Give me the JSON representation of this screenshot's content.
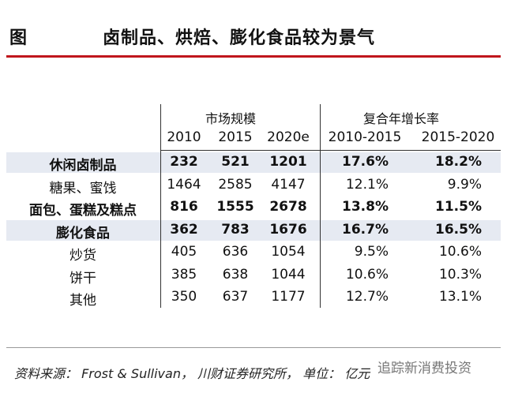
{
  "header": {
    "label": "图",
    "title": "卤制品、烘焙、膨化食品较为景气"
  },
  "table": {
    "group_headers": [
      "市场规模",
      "复合年增长率"
    ],
    "columns": [
      "2010",
      "2015",
      "2020e",
      "2010-2015",
      "2015-2020"
    ],
    "rows": [
      [
        "休闲卤制品",
        "232",
        "521",
        "1201",
        "17.6%",
        "18.2%"
      ],
      [
        "糖果、蜜饯",
        "1464",
        "2585",
        "4147",
        "12.1%",
        "9.9%"
      ],
      [
        "面包、蛋糕及糕点",
        "816",
        "1555",
        "2678",
        "13.8%",
        "11.5%"
      ],
      [
        "膨化食品",
        "362",
        "783",
        "1676",
        "16.7%",
        "16.5%"
      ],
      [
        "炒货",
        "405",
        "636",
        "1054",
        "9.5%",
        "10.6%"
      ],
      [
        "饼干",
        "385",
        "638",
        "1044",
        "10.6%",
        "10.3%"
      ],
      [
        "其他",
        "350",
        "637",
        "1177",
        "12.7%",
        "13.1%"
      ]
    ]
  },
  "footer": {
    "source": "资料来源： Frost & Sullivan， 川财证券研究所， 单位： 亿元",
    "watermark": "追踪新消费投资"
  }
}
